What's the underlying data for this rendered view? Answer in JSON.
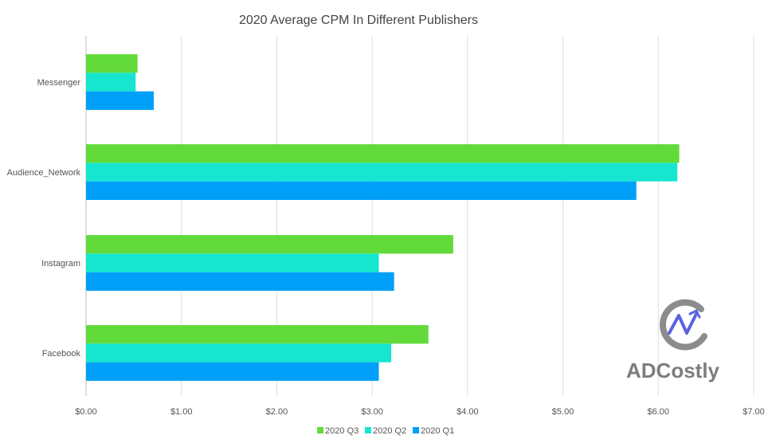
{
  "chart_data": {
    "type": "bar",
    "orientation": "horizontal",
    "title": "2020 Average CPM In Different Publishers",
    "xlabel": "",
    "ylabel": "",
    "categories": [
      "Messenger",
      "Audience_Network",
      "Instagram",
      "Facebook"
    ],
    "series": [
      {
        "name": "2020 Q3",
        "color": "#62db3a",
        "values": [
          0.54,
          6.22,
          3.85,
          3.59
        ]
      },
      {
        "name": "2020 Q2",
        "color": "#16e6cf",
        "values": [
          0.52,
          6.2,
          3.07,
          3.2
        ]
      },
      {
        "name": "2020 Q1",
        "color": "#00a0f8",
        "values": [
          0.71,
          5.77,
          3.23,
          3.07
        ]
      }
    ],
    "xlim": [
      0,
      7
    ],
    "xticks": [
      0,
      1,
      2,
      3,
      4,
      5,
      6,
      7
    ],
    "xtick_labels": [
      "$0.00",
      "$1.00",
      "$2.00",
      "$3.00",
      "$4.00",
      "$5.00",
      "$6.00",
      "$7.00"
    ],
    "grid": "vertical",
    "legend_position": "bottom-center"
  },
  "watermark": {
    "text": "ADCostly",
    "icon": "adcostly-logo-icon"
  }
}
